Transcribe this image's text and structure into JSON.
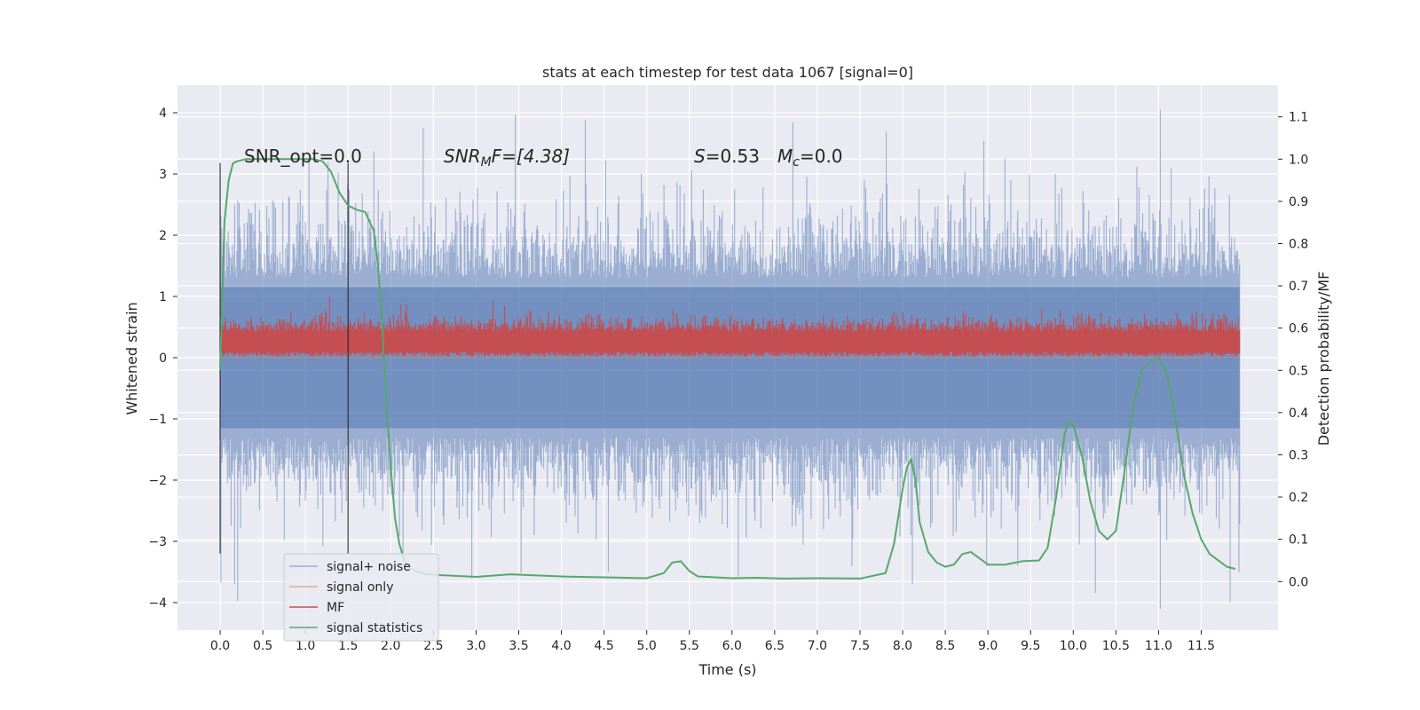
{
  "chart_data": {
    "type": "line",
    "title": "stats at each timestep for test data 1067 [signal=0]",
    "xlabel": "Time (s)",
    "ylabel": "Whitened strain",
    "y2label": "Detection probability/MF",
    "xlim": [
      -0.5,
      12.4
    ],
    "ylim": [
      -4.45,
      4.45
    ],
    "y2lim": [
      -0.115,
      1.175
    ],
    "x_ticks": [
      "0.0",
      "0.5",
      "1.0",
      "1.5",
      "2.0",
      "2.5",
      "3.0",
      "3.5",
      "4.0",
      "4.5",
      "5.0",
      "5.5",
      "6.0",
      "6.5",
      "7.0",
      "7.5",
      "8.0",
      "8.5",
      "9.0",
      "9.5",
      "10.0",
      "10.5",
      "11.0",
      "11.5"
    ],
    "y_ticks": [
      "4",
      "3",
      "2",
      "1",
      "0",
      "−1",
      "−2",
      "−3",
      "−4"
    ],
    "y2_ticks": [
      "1.1",
      "1.0",
      "0.9",
      "0.8",
      "0.7",
      "0.6",
      "0.5",
      "0.4",
      "0.3",
      "0.2",
      "0.1",
      "0.0"
    ],
    "grid": true,
    "legend_position": "lower-left",
    "annotations": {
      "snr_opt": "SNR_opt=0.0",
      "snr_mf_label": "SNR",
      "snr_mf_sub": "M",
      "snr_mf_value": "F=[4.38]",
      "s_label": "S",
      "s_value": "=0.53",
      "mc_label": "M",
      "mc_sub": "c",
      "mc_value": "=0.0"
    },
    "vertical_markers": [
      0.0,
      1.5
    ],
    "series": [
      {
        "name": "signal+ noise",
        "color": "#4c72b0",
        "opacity": 0.5,
        "x_range": [
          0.0,
          11.95
        ],
        "envelope_upper_typical": 1.3,
        "envelope_lower_typical": -1.3,
        "max": 4.05,
        "min": -4.1
      },
      {
        "name": "signal only",
        "color": "#dd8452",
        "values_constant": 0.0
      },
      {
        "name": "MF",
        "color": "#c44e52",
        "x_range": [
          0.0,
          11.95
        ],
        "band_lower": 0.02,
        "band_upper": 0.62,
        "max": 1.0
      },
      {
        "name": "signal statistics",
        "color": "#55a868",
        "axis": "right",
        "x": [
          0.0,
          0.05,
          0.1,
          0.15,
          0.2,
          0.3,
          0.5,
          0.8,
          1.0,
          1.1,
          1.2,
          1.3,
          1.4,
          1.5,
          1.6,
          1.7,
          1.8,
          1.85,
          1.9,
          1.95,
          2.0,
          2.05,
          2.1,
          2.15,
          2.2,
          2.3,
          2.4,
          2.6,
          3.0,
          3.4,
          4.0,
          4.5,
          5.0,
          5.2,
          5.3,
          5.4,
          5.5,
          5.6,
          6.0,
          6.3,
          6.6,
          7.0,
          7.5,
          7.8,
          7.9,
          8.0,
          8.05,
          8.1,
          8.15,
          8.2,
          8.3,
          8.4,
          8.5,
          8.6,
          8.7,
          8.8,
          8.9,
          9.0,
          9.2,
          9.4,
          9.6,
          9.7,
          9.8,
          9.9,
          9.95,
          10.0,
          10.1,
          10.2,
          10.3,
          10.4,
          10.5,
          10.6,
          10.7,
          10.8,
          10.9,
          11.0,
          11.1,
          11.2,
          11.3,
          11.4,
          11.5,
          11.6,
          11.7,
          11.8,
          11.9
        ],
        "values": [
          0.5,
          0.85,
          0.95,
          0.99,
          0.995,
          1.0,
          1.0,
          1.0,
          1.0,
          1.0,
          0.995,
          0.97,
          0.92,
          0.89,
          0.88,
          0.875,
          0.83,
          0.75,
          0.6,
          0.42,
          0.27,
          0.15,
          0.09,
          0.055,
          0.035,
          0.025,
          0.018,
          0.015,
          0.011,
          0.017,
          0.012,
          0.01,
          0.008,
          0.02,
          0.045,
          0.048,
          0.025,
          0.012,
          0.008,
          0.009,
          0.007,
          0.008,
          0.007,
          0.02,
          0.09,
          0.22,
          0.27,
          0.29,
          0.24,
          0.14,
          0.07,
          0.045,
          0.035,
          0.04,
          0.065,
          0.07,
          0.055,
          0.04,
          0.04,
          0.048,
          0.05,
          0.08,
          0.2,
          0.35,
          0.38,
          0.37,
          0.3,
          0.19,
          0.12,
          0.1,
          0.12,
          0.26,
          0.41,
          0.5,
          0.52,
          0.53,
          0.49,
          0.38,
          0.25,
          0.16,
          0.1,
          0.065,
          0.05,
          0.035,
          0.03
        ]
      }
    ]
  }
}
